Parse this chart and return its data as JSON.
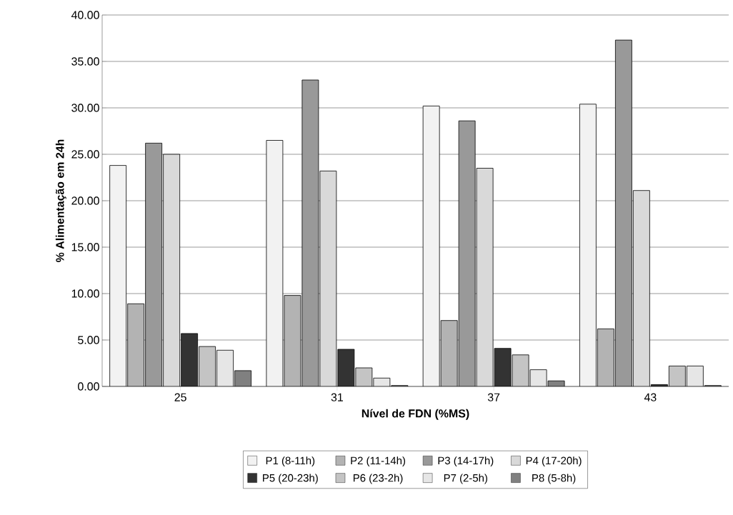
{
  "chart_data": {
    "type": "bar",
    "xlabel": "Nível de FDN (%MS)",
    "ylabel": "% Alimentação em 24h",
    "categories": [
      "25",
      "31",
      "37",
      "43"
    ],
    "series": [
      {
        "name": "P1 (8-11h)",
        "color": "#f2f2f2",
        "values": [
          23.8,
          26.5,
          30.2,
          30.4
        ]
      },
      {
        "name": "P2 (11-14h)",
        "color": "#b3b3b3",
        "values": [
          8.9,
          9.8,
          7.1,
          6.2
        ]
      },
      {
        "name": "P3 (14-17h)",
        "color": "#999999",
        "values": [
          26.2,
          33.0,
          28.6,
          37.3
        ]
      },
      {
        "name": "P4 (17-20h)",
        "color": "#d9d9d9",
        "values": [
          25.0,
          23.2,
          23.5,
          21.1
        ]
      },
      {
        "name": "P5 (20-23h)",
        "color": "#333333",
        "values": [
          5.7,
          4.0,
          4.1,
          0.2
        ]
      },
      {
        "name": "P6 (23-2h)",
        "color": "#c4c4c4",
        "values": [
          4.3,
          2.0,
          3.4,
          2.2
        ]
      },
      {
        "name": "P7 (2-5h)",
        "color": "#e6e6e6",
        "values": [
          3.9,
          0.9,
          1.8,
          2.2
        ]
      },
      {
        "name": "P8 (5-8h)",
        "color": "#808080",
        "values": [
          1.7,
          0.1,
          0.6,
          0.1
        ]
      }
    ],
    "ylim": [
      0,
      40
    ],
    "yticks": [
      {
        "value": 0,
        "label": "0.00"
      },
      {
        "value": 5,
        "label": "5.00"
      },
      {
        "value": 10,
        "label": "10.00"
      },
      {
        "value": 15,
        "label": "15.00"
      },
      {
        "value": 20,
        "label": "20.00"
      },
      {
        "value": 25,
        "label": "25.00"
      },
      {
        "value": 30,
        "label": "30.00"
      },
      {
        "value": 35,
        "label": "35.00"
      },
      {
        "value": 40,
        "label": "40.00"
      }
    ],
    "grid": "y",
    "legend": "bottom"
  }
}
